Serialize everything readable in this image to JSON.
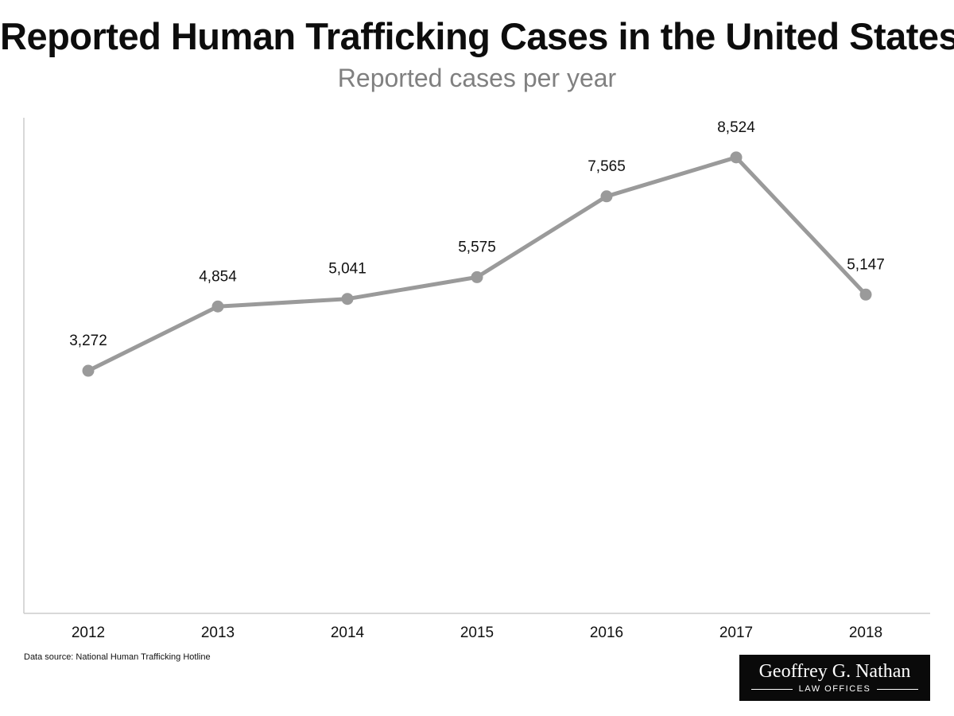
{
  "header": {
    "title": "Reported Human Trafficking Cases in the United States",
    "subtitle": "Reported cases per year"
  },
  "footer": {
    "source": "Data source: National Human Trafficking Hotline",
    "logo_name": "Geoffrey G. Nathan",
    "logo_sub": "LAW OFFICES"
  },
  "chart_data": {
    "type": "line",
    "title": "Reported Human Trafficking Cases in the United States",
    "subtitle": "Reported cases per year",
    "xlabel": "",
    "ylabel": "",
    "categories": [
      "2012",
      "2013",
      "2014",
      "2015",
      "2016",
      "2017",
      "2018"
    ],
    "series": [
      {
        "values": [
          3272,
          4854,
          5041,
          5575,
          7565,
          8524,
          5147
        ],
        "labels": [
          "3,272",
          "4,854",
          "5,041",
          "5,575",
          "7,565",
          "8,524",
          "5,147"
        ]
      }
    ],
    "ylim": [
      -2700,
      9500
    ],
    "grid": false,
    "legend": "none",
    "line_color": "#9a9a9a",
    "axis_color": "#cccccc"
  }
}
